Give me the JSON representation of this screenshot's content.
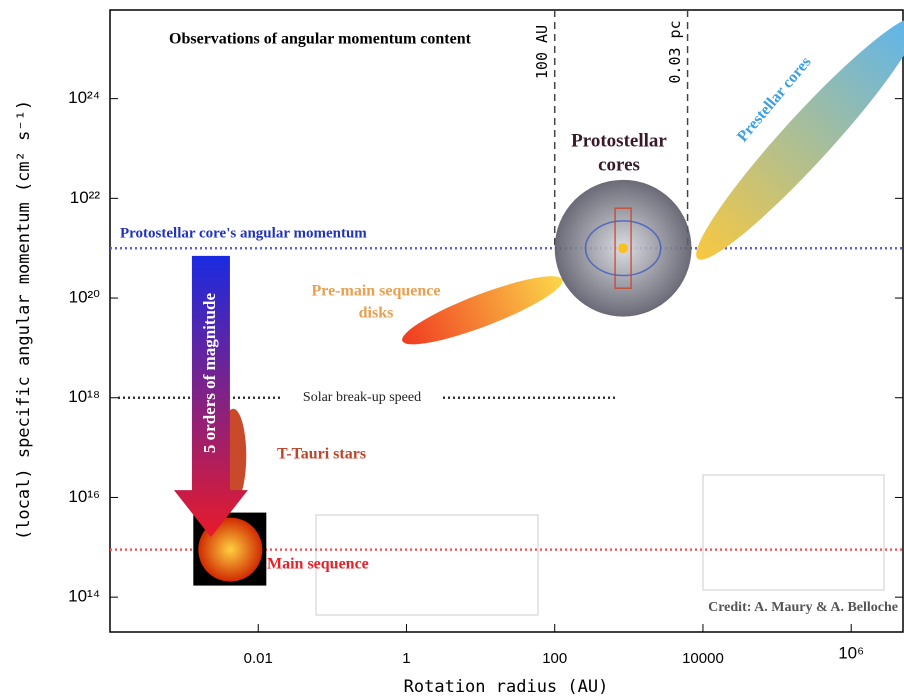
{
  "chart_data": {
    "type": "region",
    "title": "Observations of angular momentum content",
    "xlabel": "Rotation radius (AU)",
    "ylabel": "(local) specific angular momentum (cm² s⁻¹)",
    "xscale": "log",
    "yscale": "log",
    "xlim": [
      0.0001,
      5000000
    ],
    "ylim": [
      20000000000000.0,
      6e+25
    ],
    "xticks": [
      0.01,
      1,
      100,
      10000,
      {
        "value": 1000000,
        "label": "10⁶"
      }
    ],
    "yticks": [
      {
        "value": 100000000000000.0,
        "label": "10¹⁴"
      },
      {
        "value": 1e+16,
        "label": "10¹⁶"
      },
      {
        "value": 1e+18,
        "label": "10¹⁸"
      },
      {
        "value": 1e+20,
        "label": "10²⁰"
      },
      {
        "value": 1e+22,
        "label": "10²²"
      },
      {
        "value": 1e+24,
        "label": "10²⁴"
      }
    ],
    "hlines": [
      {
        "name": "Protostellar core's angular momentum",
        "value": 1e+21,
        "color": "#5a66cc"
      },
      {
        "name": "Solar break-up speed",
        "value": 1e+18,
        "color": "#333333",
        "x_end": 700
      },
      {
        "value": 900000000000000.0,
        "color": "#ee5c5c"
      }
    ],
    "vlines": [
      {
        "name": "100 AU",
        "value": 100
      },
      {
        "name": "0.03 pc",
        "value": 6200
      }
    ],
    "regions": [
      {
        "shape": "ellipse",
        "label_lines": [
          "Pre-main sequence",
          "disks"
        ],
        "x": [
          1.4,
          80
        ],
        "y": [
          1.8e+19,
          1.8e+20
        ],
        "colors": [
          "#f03a20",
          "#fbd84a"
        ],
        "label_color": "#e8a050"
      },
      {
        "shape": "ellipse",
        "label_lines": [
          "Prestellar cores"
        ],
        "x": [
          14000,
          4700000
        ],
        "y": [
          1.4e+21,
          1.8e+25
        ],
        "colors": [
          "#f8c840",
          "#5ab4f0"
        ],
        "label_color": "#3aa0e0"
      },
      {
        "shape": "ellipse",
        "label_lines": [
          "T-Tauri stars"
        ],
        "x": [
          0.0046,
          0.0046
        ],
        "y": [
          1.4e+16,
          3.3e+17
        ],
        "colors": [
          "#c84a2a",
          "#c84a2a"
        ],
        "label_color": "#c0442a"
      },
      {
        "shape": "circle",
        "label_lines": [
          "Protostellar",
          "cores"
        ],
        "x": [
          100,
          7000
        ],
        "y": [
          1e+21,
          1e+21
        ],
        "colors": [
          "#d8d8e0",
          "#5a5a68"
        ],
        "label_color": "#3a1a2a"
      },
      {
        "shape": "sun",
        "label_lines": [
          "Main sequence"
        ],
        "x": [
          0.0042,
          0.0042
        ],
        "y": [
          900000000000000.0,
          900000000000000.0
        ],
        "colors": [
          "#ffd040",
          "#d02a00"
        ],
        "label_color": "#e8202a"
      }
    ],
    "arrow": {
      "label": "5 orders of magnitude",
      "x": 0.0023,
      "y": [
        7e+20,
        1600000000000000.0
      ],
      "colors": [
        "#1a2ae0",
        "#e81a2a"
      ]
    },
    "credit": "Credit: A. Maury & A. Belloche"
  }
}
